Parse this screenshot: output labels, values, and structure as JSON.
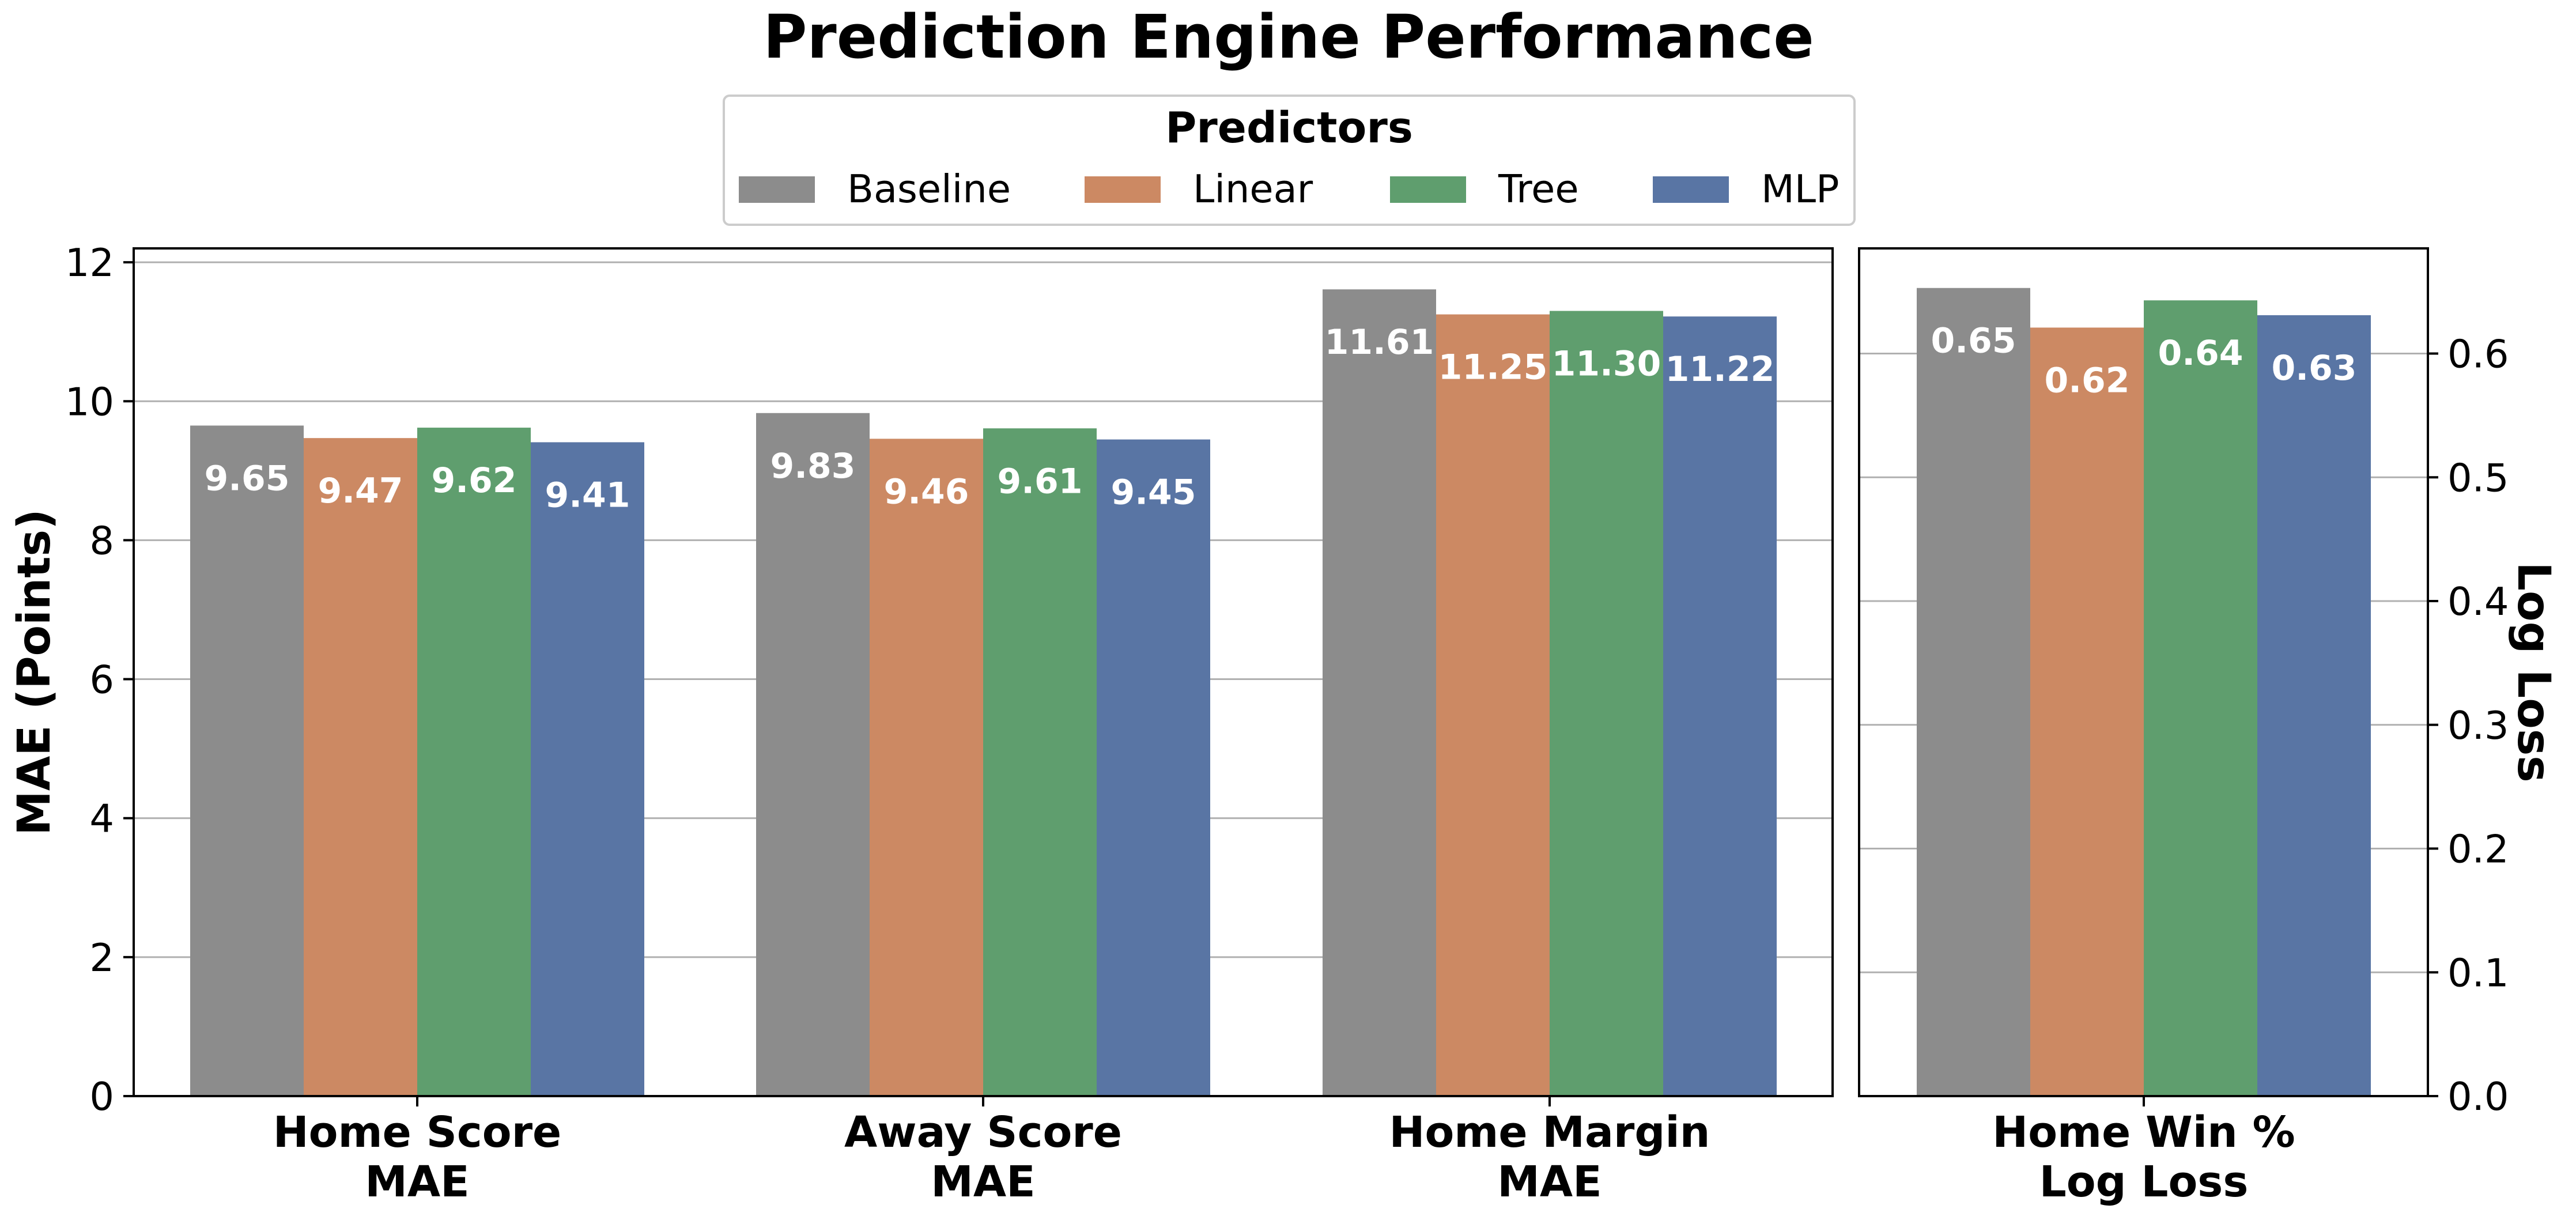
{
  "title": "Prediction Engine Performance",
  "legend": {
    "title": "Predictors",
    "placement": "top-center"
  },
  "colors": {
    "Baseline": "#8c8c8c",
    "Linear": "#cc8963",
    "Tree": "#5f9e6e",
    "MLP": "#5975a4",
    "grid": "#b0b0b0"
  },
  "chart_data": [
    {
      "type": "bar",
      "categories": [
        "Home Score\nMAE",
        "Away Score\nMAE",
        "Home Margin\nMAE"
      ],
      "series": [
        {
          "name": "Baseline",
          "values": [
            9.65,
            9.83,
            11.61
          ]
        },
        {
          "name": "Linear",
          "values": [
            9.47,
            9.46,
            11.25
          ]
        },
        {
          "name": "Tree",
          "values": [
            9.62,
            9.61,
            11.3
          ]
        },
        {
          "name": "MLP",
          "values": [
            9.41,
            9.45,
            11.22
          ]
        }
      ],
      "data_labels": [
        [
          "9.65",
          "9.83",
          "11.61"
        ],
        [
          "9.47",
          "9.46",
          "11.25"
        ],
        [
          "9.62",
          "9.61",
          "11.30"
        ],
        [
          "9.41",
          "9.45",
          "11.22"
        ]
      ],
      "ylabel": "MAE (Points)",
      "ylim": [
        0,
        12.2
      ],
      "yticks": [
        0,
        2,
        4,
        6,
        8,
        10,
        12
      ],
      "ytick_labels": [
        "0",
        "2",
        "4",
        "6",
        "8",
        "10",
        "12"
      ],
      "grid": true,
      "y_axis_side": "left"
    },
    {
      "type": "bar",
      "categories": [
        "Home Win %\nLog Loss"
      ],
      "series": [
        {
          "name": "Baseline",
          "values": [
            0.653
          ]
        },
        {
          "name": "Linear",
          "values": [
            0.621
          ]
        },
        {
          "name": "Tree",
          "values": [
            0.643
          ]
        },
        {
          "name": "MLP",
          "values": [
            0.631
          ]
        }
      ],
      "data_labels": [
        [
          "0.65"
        ],
        [
          "0.62"
        ],
        [
          "0.64"
        ],
        [
          "0.63"
        ]
      ],
      "ylabel": "Log Loss",
      "ylim": [
        0,
        0.685
      ],
      "yticks": [
        0,
        0.1,
        0.2,
        0.3,
        0.4,
        0.5,
        0.6
      ],
      "ytick_labels": [
        "0.0",
        "0.1",
        "0.2",
        "0.3",
        "0.4",
        "0.5",
        "0.6"
      ],
      "grid": true,
      "y_axis_side": "right"
    }
  ]
}
